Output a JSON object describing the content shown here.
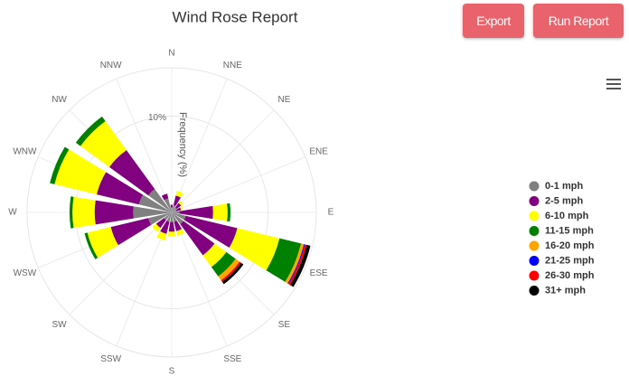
{
  "buttons": [
    "Export",
    "Run Report"
  ],
  "chart_data": {
    "type": "windrose",
    "title": "Wind Rose Report",
    "y_axis_label": "Frequency (%)",
    "categories": [
      "N",
      "NNE",
      "NE",
      "ENE",
      "E",
      "ESE",
      "SE",
      "SSE",
      "S",
      "SSW",
      "SW",
      "WSW",
      "W",
      "WNW",
      "NW",
      "NNW"
    ],
    "ylim": [
      0,
      15
    ],
    "yticks": [
      {
        "value": 10,
        "label": "10%"
      }
    ],
    "series": [
      {
        "name": "0-1 mph",
        "color": "#808080",
        "values": [
          0.5,
          0.8,
          0.6,
          0.5,
          0.8,
          1.5,
          1.5,
          1,
          1,
          1,
          1,
          2.5,
          4,
          3.5,
          3,
          1.5
        ]
      },
      {
        "name": "2-5 mph",
        "color": "#800080",
        "values": [
          0.3,
          1,
          0.6,
          0.5,
          3.5,
          5.5,
          4,
          1,
          1,
          1.3,
          1,
          4,
          4,
          4.5,
          5,
          0.5
        ]
      },
      {
        "name": "6-10 mph",
        "color": "#ffff00",
        "values": [
          0,
          0.5,
          0.3,
          0.2,
          1.5,
          4.5,
          1.5,
          0.5,
          0.5,
          0.7,
          0.5,
          2.5,
          2.3,
          4.5,
          3.7,
          0
        ]
      },
      {
        "name": "11-15 mph",
        "color": "#008000",
        "values": [
          0,
          0,
          0,
          0,
          0.3,
          2.3,
          1.2,
          0,
          0,
          0,
          0,
          0.3,
          0.3,
          0.5,
          0.6,
          0
        ]
      },
      {
        "name": "16-20 mph",
        "color": "#ffa500",
        "values": [
          0,
          0,
          0,
          0,
          0,
          0.3,
          0.5,
          0,
          0,
          0,
          0,
          0,
          0,
          0,
          0,
          0
        ]
      },
      {
        "name": "21-25 mph",
        "color": "#0000ff",
        "values": [
          0,
          0,
          0,
          0,
          0,
          0.1,
          0,
          0,
          0,
          0,
          0,
          0,
          0,
          0,
          0,
          0
        ]
      },
      {
        "name": "26-30 mph",
        "color": "#ff0000",
        "values": [
          0,
          0,
          0,
          0,
          0,
          0.2,
          0.2,
          0,
          0,
          0,
          0,
          0,
          0,
          0,
          0,
          0
        ]
      },
      {
        "name": "31+ mph",
        "color": "#000000",
        "values": [
          0,
          0,
          0,
          0,
          0,
          0.4,
          0.3,
          0,
          0,
          0,
          0,
          0,
          0,
          0,
          0,
          0
        ]
      }
    ],
    "legend": "right"
  }
}
